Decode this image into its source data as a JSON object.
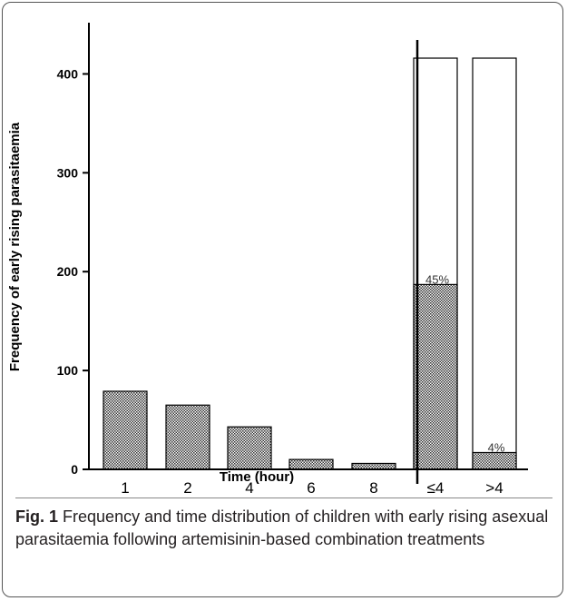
{
  "chart_data": {
    "type": "bar",
    "categories": [
      "1",
      "2",
      "4",
      "6",
      "8",
      "≤4",
      ">4"
    ],
    "series": [
      {
        "values": [
          79,
          65,
          43,
          10,
          6,
          187,
          17
        ]
      },
      {
        "values": [
          null,
          null,
          null,
          null,
          null,
          416,
          416
        ]
      }
    ],
    "annotations": [
      "",
      "",
      "",
      "",
      "",
      "45%",
      "4%"
    ],
    "ylabel": "Frequency of early rising parasitaemia",
    "xlabel": "Time (hour)",
    "ylim": [
      0,
      450
    ],
    "yticks": [
      0,
      100,
      200,
      300,
      400
    ],
    "grid": false,
    "colors": {
      "hatched_fill": "#4a4a4a",
      "open_fill": "#ffffff",
      "stroke": "#000000"
    }
  },
  "caption": {
    "label": "Fig. 1",
    "text": "Frequency and time distribution of children with early rising asexual parasitaemia following artemisinin-based combination treatments"
  }
}
